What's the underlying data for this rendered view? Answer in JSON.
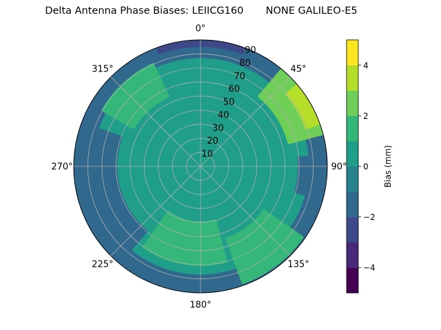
{
  "chart_data": {
    "type": "polar-contour",
    "title": "Delta Antenna Phase Biases: LEIICG160       NONE GALILEO-E5",
    "angle_ticks": [
      "0°",
      "45°",
      "90°",
      "135°",
      "180°",
      "225°",
      "270°",
      "315°"
    ],
    "angle_tick_values": [
      0,
      45,
      90,
      135,
      180,
      225,
      270,
      315
    ],
    "radial_ticks": [
      "10",
      "20",
      "30",
      "40",
      "50",
      "60",
      "70",
      "80",
      "90"
    ],
    "radial_tick_values": [
      10,
      20,
      30,
      40,
      50,
      60,
      70,
      80,
      90
    ],
    "radial_range": [
      0,
      90
    ],
    "theta_zero": "top",
    "theta_direction": "clockwise",
    "grid": true,
    "colorbar": {
      "label": "Bias (mm)",
      "ticks": [
        "−4",
        "−2",
        "0",
        "2",
        "4"
      ],
      "tick_values": [
        -4,
        -2,
        0,
        2,
        4
      ],
      "range": [
        -5,
        5
      ],
      "levels": [
        -5,
        -4.5,
        -4,
        -3.5,
        -3,
        -2.5,
        -2,
        -1.5,
        -1,
        -0.5,
        0,
        0.5,
        1,
        1.5,
        2,
        2.5,
        3,
        3.5,
        4,
        4.5,
        5
      ],
      "colors": [
        "#440154",
        "#482878",
        "#3e4989",
        "#31688e",
        "#26828e",
        "#1f9e89",
        "#35b779",
        "#6ece58",
        "#b5de2b",
        "#fde725"
      ],
      "colormap": "viridis"
    },
    "background_level": 0.5,
    "regions": [
      {
        "name": "outer-ring-blue",
        "value": -1.2,
        "theta": [
          0,
          360
        ],
        "r": [
          78,
          90
        ]
      },
      {
        "name": "north-dark-edge",
        "value": -2.5,
        "theta": [
          340,
          20
        ],
        "r": [
          86,
          90
        ]
      },
      {
        "name": "northwest-high",
        "value": 1.3,
        "theta": [
          300,
          335
        ],
        "r": [
          55,
          80
        ]
      },
      {
        "name": "northeast-high",
        "value": 2.5,
        "theta": [
          40,
          75
        ],
        "r": [
          65,
          90
        ]
      },
      {
        "name": "northeast-peak",
        "value": 3.5,
        "theta": [
          50,
          70
        ],
        "r": [
          80,
          90
        ]
      },
      {
        "name": "east-low",
        "value": -1.5,
        "theta": [
          85,
          105
        ],
        "r": [
          70,
          85
        ]
      },
      {
        "name": "south-east-high",
        "value": 1.2,
        "theta": [
          125,
          160
        ],
        "r": [
          55,
          88
        ]
      },
      {
        "name": "south-high",
        "value": 1.0,
        "theta": [
          165,
          215
        ],
        "r": [
          40,
          70
        ]
      },
      {
        "name": "west-low",
        "value": -1.5,
        "theta": [
          220,
          290
        ],
        "r": [
          60,
          88
        ]
      },
      {
        "name": "center-low",
        "value": 0.0,
        "theta": [
          0,
          360
        ],
        "r": [
          0,
          15
        ]
      }
    ]
  }
}
